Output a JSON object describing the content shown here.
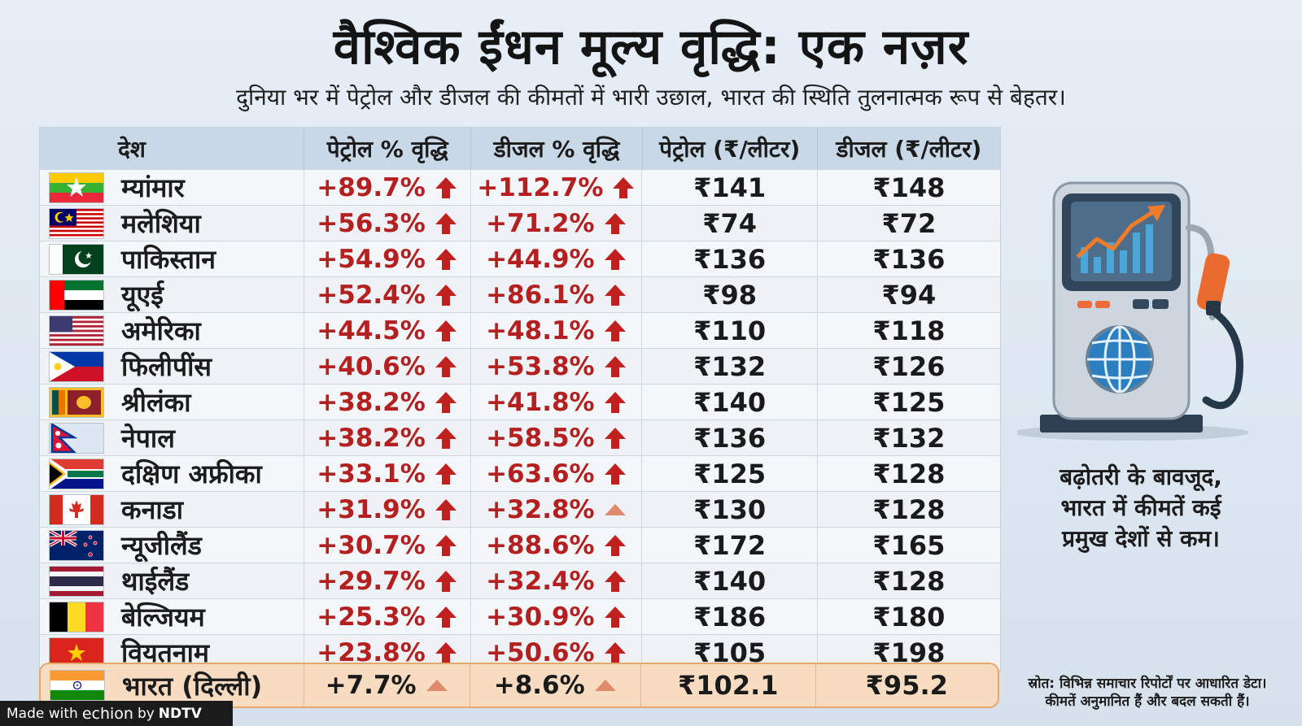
{
  "title": "वैश्विक ईंधन मूल्य वृद्धि: एक नज़र",
  "subtitle": "दुनिया भर में पेट्रोल और डीजल की कीमतों में भारी उछाल, भारत की स्थिति तुलनात्मक रूप से बेहतर।",
  "table": {
    "headers": [
      "देश",
      "पेट्रोल % वृद्धि",
      "डीजल % वृद्धि",
      "पेट्रोल (₹/लीटर)",
      "डीजल (₹/लीटर)"
    ],
    "rows": [
      {
        "country": "म्यांमार",
        "flag": "myanmar-flag",
        "petrol_pct": "+89.7%",
        "diesel_pct": "+112.7%",
        "petrol_price": "₹141",
        "diesel_price": "₹148",
        "petrol_arrow": "strong",
        "diesel_arrow": "strong"
      },
      {
        "country": "मलेशिया",
        "flag": "malaysia-flag",
        "petrol_pct": "+56.3%",
        "diesel_pct": "+71.2%",
        "petrol_price": "₹74",
        "diesel_price": "₹72",
        "petrol_arrow": "strong",
        "diesel_arrow": "strong"
      },
      {
        "country": "पाकिस्तान",
        "flag": "pakistan-flag",
        "petrol_pct": "+54.9%",
        "diesel_pct": "+44.9%",
        "petrol_price": "₹136",
        "diesel_price": "₹136",
        "petrol_arrow": "strong",
        "diesel_arrow": "strong"
      },
      {
        "country": "यूएई",
        "flag": "uae-flag",
        "petrol_pct": "+52.4%",
        "diesel_pct": "+86.1%",
        "petrol_price": "₹98",
        "diesel_price": "₹94",
        "petrol_arrow": "strong",
        "diesel_arrow": "strong"
      },
      {
        "country": "अमेरिका",
        "flag": "usa-flag",
        "petrol_pct": "+44.5%",
        "diesel_pct": "+48.1%",
        "petrol_price": "₹110",
        "diesel_price": "₹118",
        "petrol_arrow": "strong",
        "diesel_arrow": "strong"
      },
      {
        "country": "फिलीपींस",
        "flag": "philippines-flag",
        "petrol_pct": "+40.6%",
        "diesel_pct": "+53.8%",
        "petrol_price": "₹132",
        "diesel_price": "₹126",
        "petrol_arrow": "strong",
        "diesel_arrow": "strong"
      },
      {
        "country": "श्रीलंका",
        "flag": "sri-lanka-flag",
        "petrol_pct": "+38.2%",
        "diesel_pct": "+41.8%",
        "petrol_price": "₹140",
        "diesel_price": "₹125",
        "petrol_arrow": "strong",
        "diesel_arrow": "strong"
      },
      {
        "country": "नेपाल",
        "flag": "nepal-flag",
        "petrol_pct": "+38.2%",
        "diesel_pct": "+58.5%",
        "petrol_price": "₹136",
        "diesel_price": "₹132",
        "petrol_arrow": "strong",
        "diesel_arrow": "strong"
      },
      {
        "country": "दक्षिण अफ्रीका",
        "flag": "south-africa-flag",
        "petrol_pct": "+33.1%",
        "diesel_pct": "+63.6%",
        "petrol_price": "₹125",
        "diesel_price": "₹128",
        "petrol_arrow": "strong",
        "diesel_arrow": "strong"
      },
      {
        "country": "कनाडा",
        "flag": "canada-flag",
        "petrol_pct": "+31.9%",
        "diesel_pct": "+32.8%",
        "petrol_price": "₹130",
        "diesel_price": "₹128",
        "petrol_arrow": "strong",
        "diesel_arrow": "mild"
      },
      {
        "country": "न्यूजीलैंड",
        "flag": "new-zealand-flag",
        "petrol_pct": "+30.7%",
        "diesel_pct": "+88.6%",
        "petrol_price": "₹172",
        "diesel_price": "₹165",
        "petrol_arrow": "strong",
        "diesel_arrow": "strong"
      },
      {
        "country": "थाईलैंड",
        "flag": "thailand-flag",
        "petrol_pct": "+29.7%",
        "diesel_pct": "+32.4%",
        "petrol_price": "₹140",
        "diesel_price": "₹128",
        "petrol_arrow": "strong",
        "diesel_arrow": "strong"
      },
      {
        "country": "बेल्जियम",
        "flag": "belgium-flag",
        "petrol_pct": "+25.3%",
        "diesel_pct": "+30.9%",
        "petrol_price": "₹186",
        "diesel_price": "₹180",
        "petrol_arrow": "strong",
        "diesel_arrow": "strong"
      },
      {
        "country": "वियतनाम",
        "flag": "vietnam-flag",
        "petrol_pct": "+23.8%",
        "diesel_pct": "+50.6%",
        "petrol_price": "₹105",
        "diesel_price": "₹198",
        "petrol_arrow": "strong",
        "diesel_arrow": "strong"
      }
    ],
    "india": {
      "country": "भारत (दिल्ली)",
      "flag": "india-flag",
      "petrol_pct": "+7.7%",
      "diesel_pct": "+8.6%",
      "petrol_price": "₹102.1",
      "diesel_price": "₹95.2",
      "petrol_arrow": "mild",
      "diesel_arrow": "mild"
    }
  },
  "colors": {
    "strong_arrow": "#c0211f",
    "mild_arrow": "#e08a6c",
    "highlight_bg": "#f8dcc2",
    "header_bg": "#c9d8e7"
  },
  "illustration": {
    "icon": "fuel-pump-chart-icon"
  },
  "note_lines": [
    "बढ़ोतरी के बावजूद,",
    "भारत में कीमतें कई",
    "प्रमुख देशों से कम।"
  ],
  "source_lines": [
    "स्रोत: विभिन्न समाचार रिपोर्टों पर आधारित डेटा।",
    "कीमतें अनुमानित हैं और बदल सकती हैं।"
  ],
  "watermark": {
    "prefix": "Made with",
    "brand": "echion",
    "by": "by",
    "partner": "NDTV"
  }
}
